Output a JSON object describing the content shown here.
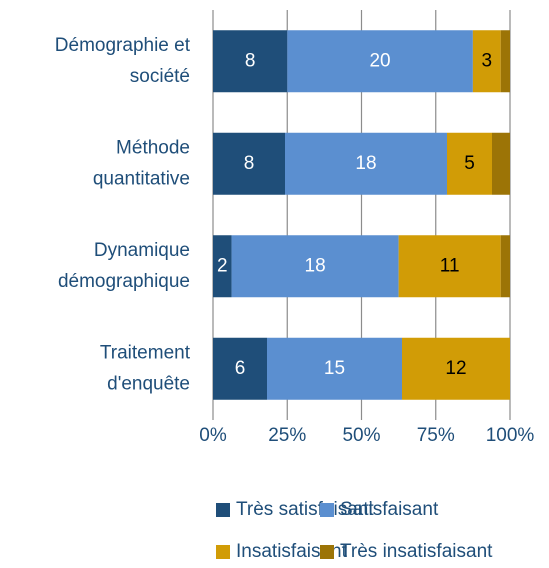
{
  "chart_data": {
    "type": "bar_stacked_100",
    "orientation": "horizontal",
    "categories": [
      "Démographie et\nsociété",
      "Méthode\nquantitative",
      "Dynamique\ndémographique",
      "Traitement\nd'enquête"
    ],
    "series": [
      {
        "name": "Très satisfaisant",
        "color": "#1f4e79",
        "values": [
          8,
          8,
          2,
          6
        ]
      },
      {
        "name": "Satisfaisant",
        "color": "#5b8fd0",
        "values": [
          20,
          18,
          18,
          15
        ]
      },
      {
        "name": "Insatisfaisant",
        "color": "#d19c06",
        "values": [
          3,
          5,
          11,
          12
        ]
      },
      {
        "name": "Très insatisfaisant",
        "color": "#9c7406",
        "values": [
          1,
          2,
          1,
          0
        ],
        "data_labels": false
      }
    ],
    "xlim": [
      0,
      100
    ],
    "xticks": [
      {
        "value": 0,
        "label": "0%"
      },
      {
        "value": 25,
        "label": "25%"
      },
      {
        "value": 50,
        "label": "50%"
      },
      {
        "value": 75,
        "label": "75%"
      },
      {
        "value": 100,
        "label": "100%"
      }
    ],
    "grid": true,
    "legend": "bottom"
  }
}
